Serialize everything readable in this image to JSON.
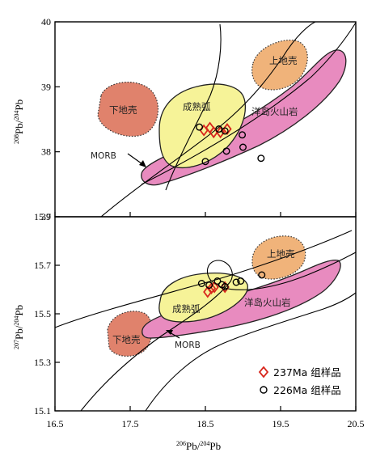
{
  "chart_data": [
    {
      "type": "scatter",
      "panel": "upper",
      "ylabel_sup": "208",
      "ylabel_sup2": "204",
      "ylabel_main": "Pb/",
      "ylabel_end": "Pb",
      "ylim": [
        37,
        40
      ],
      "xlim": [
        16.5,
        20.5
      ],
      "yticks": [
        "37",
        "38",
        "39",
        "40"
      ],
      "fields": {
        "lower_crust": "下地壳",
        "upper_crust": "上地壳",
        "mature_arc": "成熟弧",
        "oib": "洋岛火山岩",
        "morb": "MORB"
      },
      "series": [
        {
          "name": "237Ma 组样品",
          "marker": "diamond",
          "color": "#d8261c",
          "points": [
            [
              18.48,
              38.33
            ],
            [
              18.56,
              38.37
            ],
            [
              18.61,
              38.3
            ],
            [
              18.7,
              38.3
            ],
            [
              18.79,
              38.35
            ]
          ]
        },
        {
          "name": "226Ma 组样品",
          "marker": "circle",
          "color": "#000000",
          "points": [
            [
              18.42,
              38.38
            ],
            [
              18.68,
              38.35
            ],
            [
              18.76,
              38.32
            ],
            [
              18.99,
              38.26
            ],
            [
              19.0,
              38.07
            ],
            [
              18.78,
              38.01
            ],
            [
              18.5,
              37.85
            ],
            [
              19.24,
              37.9
            ]
          ]
        }
      ]
    },
    {
      "type": "scatter",
      "panel": "lower",
      "ylabel_sup": "207",
      "ylabel_sup2": "204",
      "ylabel_main": "Pb/",
      "ylabel_end": "Pb",
      "ylim": [
        15.1,
        15.9
      ],
      "xlim": [
        16.5,
        20.5
      ],
      "yticks": [
        "15.1",
        "15.3",
        "15.5",
        "15.7",
        "15.9"
      ],
      "xticks": [
        "16.5",
        "17.5",
        "18.5",
        "19.5",
        "20.5"
      ],
      "xlabel_sup": "206",
      "xlabel_sup2": "204",
      "xlabel_main": "Pb/",
      "xlabel_end": "Pb",
      "fields": {
        "lower_crust": "下地壳",
        "upper_crust": "上地壳",
        "mature_arc": "成熟弧",
        "oib": "洋岛火山岩",
        "morb": "MORB"
      },
      "series": [
        {
          "name": "237Ma 组样品",
          "marker": "diamond",
          "color": "#d8261c",
          "points": [
            [
              18.53,
              15.59
            ],
            [
              18.58,
              15.605
            ],
            [
              18.62,
              15.61
            ],
            [
              18.76,
              15.61
            ]
          ]
        },
        {
          "name": "226Ma 组样品",
          "marker": "circle",
          "color": "#000000",
          "points": [
            [
              18.45,
              15.625
            ],
            [
              18.55,
              15.618
            ],
            [
              18.66,
              15.635
            ],
            [
              18.72,
              15.62
            ],
            [
              18.76,
              15.612
            ],
            [
              18.91,
              15.63
            ],
            [
              18.97,
              15.635
            ],
            [
              19.25,
              15.66
            ]
          ]
        }
      ]
    }
  ],
  "legend": {
    "items": [
      {
        "label": "237Ma 组样品",
        "marker": "diamond",
        "color": "#d8261c"
      },
      {
        "label": "226Ma 组样品",
        "marker": "circle",
        "color": "#000000"
      }
    ]
  },
  "colors": {
    "lower_crust": "#e0826c",
    "upper_crust": "#f0b37a",
    "mature_arc": "#f6f398",
    "oib": "#e88bbf",
    "line": "#000000"
  }
}
